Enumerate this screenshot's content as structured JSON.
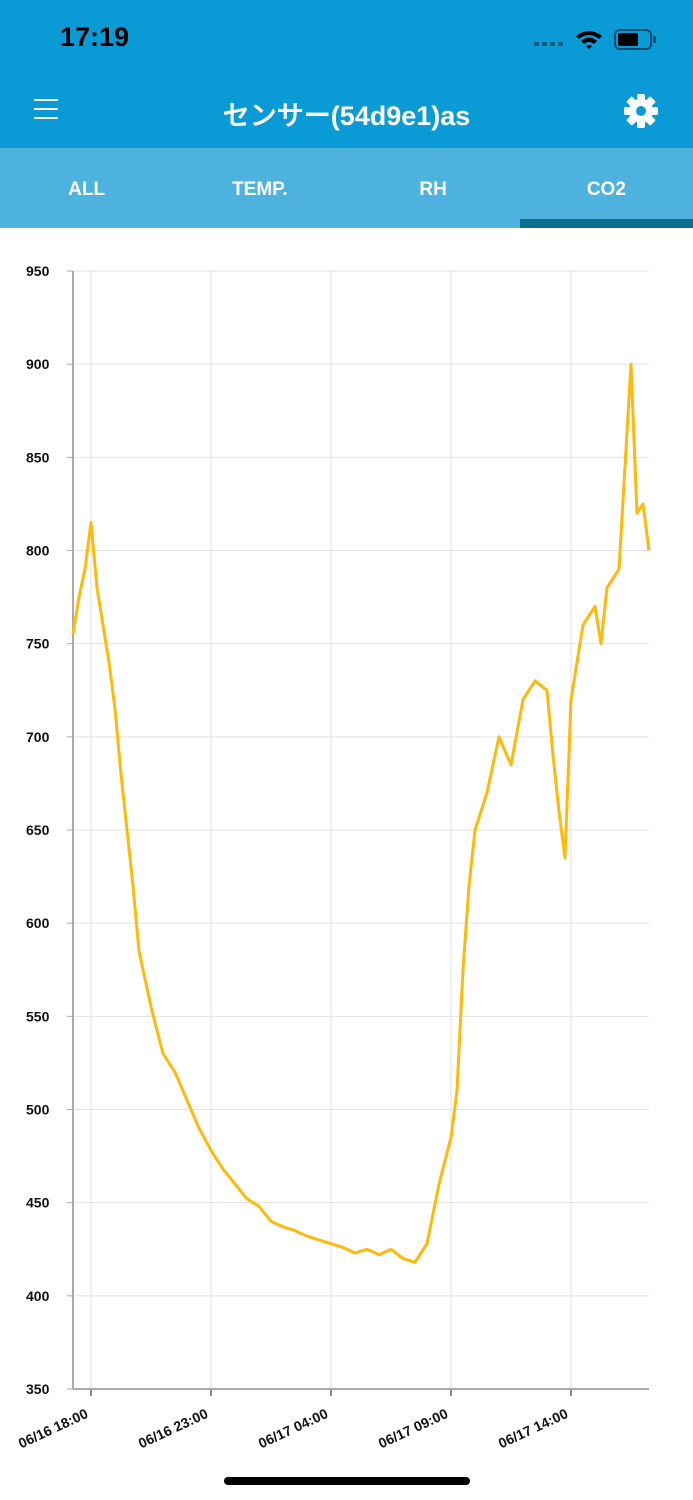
{
  "status_bar": {
    "time": "17:19"
  },
  "header": {
    "title": "センサー(54d9e1)as"
  },
  "tabs": [
    "ALL",
    "TEMP.",
    "RH",
    "CO2"
  ],
  "chart_data": {
    "type": "line",
    "color": "#ffb90a",
    "grid": true,
    "x": [
      "06/16 17:15",
      "06/16 17:30",
      "06/16 17:45",
      "06/16 18:00",
      "06/16 18:15",
      "06/16 18:30",
      "06/16 18:45",
      "06/16 19:00",
      "06/16 19:15",
      "06/16 19:30",
      "06/16 19:45",
      "06/16 20:00",
      "06/16 20:30",
      "06/16 21:00",
      "06/16 21:30",
      "06/16 22:00",
      "06/16 22:30",
      "06/16 23:00",
      "06/16 23:30",
      "06/17 00:00",
      "06/17 00:30",
      "06/17 01:00",
      "06/17 01:30",
      "06/17 02:00",
      "06/17 02:30",
      "06/17 03:00",
      "06/17 03:30",
      "06/17 04:00",
      "06/17 04:30",
      "06/17 05:00",
      "06/17 05:30",
      "06/17 06:00",
      "06/17 06:30",
      "06/17 07:00",
      "06/17 07:30",
      "06/17 08:00",
      "06/17 08:30",
      "06/17 09:00",
      "06/17 09:15",
      "06/17 09:30",
      "06/17 09:45",
      "06/17 10:00",
      "06/17 10:30",
      "06/17 11:00",
      "06/17 11:30",
      "06/17 12:00",
      "06/17 12:30",
      "06/17 13:00",
      "06/17 13:15",
      "06/17 13:30",
      "06/17 13:45",
      "06/17 14:00",
      "06/17 14:30",
      "06/17 15:00",
      "06/17 15:15",
      "06/17 15:30",
      "06/17 16:00",
      "06/17 16:30",
      "06/17 16:45",
      "06/17 17:00",
      "06/17 17:15"
    ],
    "values": [
      755,
      775,
      790,
      815,
      780,
      760,
      740,
      715,
      680,
      650,
      620,
      585,
      555,
      530,
      520,
      505,
      490,
      478,
      468,
      460,
      452,
      448,
      440,
      437,
      435,
      432,
      430,
      428,
      426,
      423,
      425,
      422,
      425,
      420,
      418,
      428,
      460,
      485,
      510,
      575,
      620,
      650,
      670,
      700,
      685,
      720,
      730,
      725,
      690,
      660,
      635,
      720,
      760,
      770,
      750,
      780,
      790,
      900,
      820,
      825,
      800
    ],
    "xlim": [
      "06/16 17:15",
      "06/17 17:15"
    ],
    "xticks": [
      "06/16 18:00",
      "06/16 23:00",
      "06/17 04:00",
      "06/17 09:00",
      "06/17 14:00"
    ],
    "ylim": [
      350,
      950
    ],
    "yticks": [
      350,
      400,
      450,
      500,
      550,
      600,
      650,
      700,
      750,
      800,
      850,
      900,
      950
    ]
  }
}
